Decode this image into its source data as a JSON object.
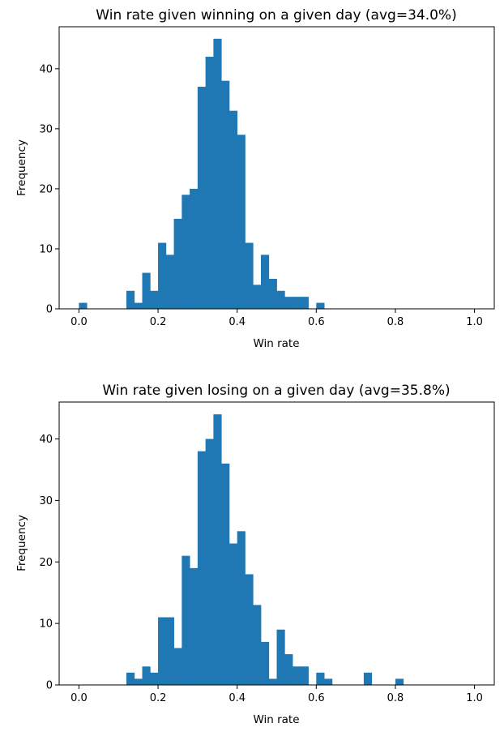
{
  "chart_data": [
    {
      "type": "bar",
      "title": "Win rate given winning on a given day (avg=34.0%)",
      "xlabel": "Win rate",
      "ylabel": "Frequency",
      "xlim": [
        -0.05,
        1.05
      ],
      "ylim": [
        0,
        47
      ],
      "xticks": [
        "0.0",
        "0.2",
        "0.4",
        "0.6",
        "0.8",
        "1.0"
      ],
      "yticks": [
        "0",
        "10",
        "20",
        "30",
        "40"
      ],
      "grid": false,
      "color": "#1f77b4",
      "bins": [
        {
          "x": 0.0,
          "value": 1
        },
        {
          "x": 0.12,
          "value": 3
        },
        {
          "x": 0.14,
          "value": 1
        },
        {
          "x": 0.16,
          "value": 6
        },
        {
          "x": 0.18,
          "value": 3
        },
        {
          "x": 0.2,
          "value": 11
        },
        {
          "x": 0.22,
          "value": 9
        },
        {
          "x": 0.24,
          "value": 15
        },
        {
          "x": 0.26,
          "value": 19
        },
        {
          "x": 0.28,
          "value": 20
        },
        {
          "x": 0.3,
          "value": 37
        },
        {
          "x": 0.32,
          "value": 42
        },
        {
          "x": 0.34,
          "value": 45
        },
        {
          "x": 0.36,
          "value": 38
        },
        {
          "x": 0.38,
          "value": 33
        },
        {
          "x": 0.4,
          "value": 29
        },
        {
          "x": 0.42,
          "value": 11
        },
        {
          "x": 0.44,
          "value": 4
        },
        {
          "x": 0.46,
          "value": 9
        },
        {
          "x": 0.48,
          "value": 5
        },
        {
          "x": 0.5,
          "value": 3
        },
        {
          "x": 0.52,
          "value": 2
        },
        {
          "x": 0.54,
          "value": 2
        },
        {
          "x": 0.56,
          "value": 2
        },
        {
          "x": 0.6,
          "value": 1
        }
      ]
    },
    {
      "type": "bar",
      "title": "Win rate given losing on a given day (avg=35.8%)",
      "xlabel": "Win rate",
      "ylabel": "Frequency",
      "xlim": [
        -0.05,
        1.05
      ],
      "ylim": [
        0,
        46
      ],
      "xticks": [
        "0.0",
        "0.2",
        "0.4",
        "0.6",
        "0.8",
        "1.0"
      ],
      "yticks": [
        "0",
        "10",
        "20",
        "30",
        "40"
      ],
      "grid": false,
      "color": "#1f77b4",
      "bins": [
        {
          "x": 0.12,
          "value": 2
        },
        {
          "x": 0.14,
          "value": 1
        },
        {
          "x": 0.16,
          "value": 3
        },
        {
          "x": 0.18,
          "value": 2
        },
        {
          "x": 0.2,
          "value": 11
        },
        {
          "x": 0.22,
          "value": 11
        },
        {
          "x": 0.24,
          "value": 6
        },
        {
          "x": 0.26,
          "value": 21
        },
        {
          "x": 0.28,
          "value": 19
        },
        {
          "x": 0.3,
          "value": 38
        },
        {
          "x": 0.32,
          "value": 40
        },
        {
          "x": 0.34,
          "value": 44
        },
        {
          "x": 0.36,
          "value": 36
        },
        {
          "x": 0.38,
          "value": 23
        },
        {
          "x": 0.4,
          "value": 25
        },
        {
          "x": 0.42,
          "value": 18
        },
        {
          "x": 0.44,
          "value": 13
        },
        {
          "x": 0.46,
          "value": 7
        },
        {
          "x": 0.48,
          "value": 1
        },
        {
          "x": 0.5,
          "value": 9
        },
        {
          "x": 0.52,
          "value": 5
        },
        {
          "x": 0.54,
          "value": 3
        },
        {
          "x": 0.56,
          "value": 3
        },
        {
          "x": 0.6,
          "value": 2
        },
        {
          "x": 0.62,
          "value": 1
        },
        {
          "x": 0.72,
          "value": 2
        },
        {
          "x": 0.8,
          "value": 1
        }
      ]
    }
  ]
}
